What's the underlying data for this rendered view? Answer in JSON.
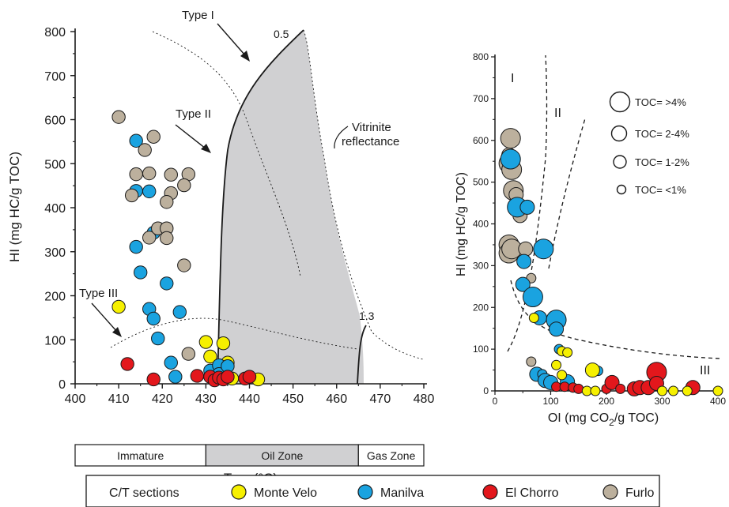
{
  "chart_data": [
    {
      "type": "scatter",
      "xlabel_main": "T",
      "xlabel_sub": "max",
      "xlabel_unit": " (°C)",
      "ylabel": "HI (mg HC/g TOC)",
      "xlim": [
        400,
        480
      ],
      "ylim": [
        0,
        800
      ],
      "x_ticks": [
        "400",
        "410",
        "420",
        "430",
        "440",
        "450",
        "460",
        "470",
        "480"
      ],
      "y_ticks": [
        "0",
        "100",
        "200",
        "300",
        "400",
        "500",
        "600",
        "700",
        "800"
      ],
      "annotations": {
        "type_i": "Type I",
        "type_ii": "Type II",
        "type_iii": "Type III",
        "vr_low": "0.5",
        "vr_high": "1.3",
        "vitrinite_1": "Vitrinite",
        "vitrinite_2": "reflectance"
      },
      "zones": [
        {
          "label": "Immature",
          "from": 400,
          "to": 430
        },
        {
          "label": "Oil Zone",
          "from": 430,
          "to": 465
        },
        {
          "label": "Gas Zone",
          "from": 465,
          "to": 480
        }
      ],
      "series": [
        {
          "name": "Monte Velo",
          "color": "#f6f000",
          "points": [
            [
              410,
              175
            ],
            [
              430,
              95
            ],
            [
              431,
              62
            ],
            [
              432,
              18
            ],
            [
              434,
              92
            ],
            [
              435,
              48
            ],
            [
              436,
              12
            ],
            [
              442,
              10
            ]
          ]
        },
        {
          "name": "Manilva",
          "color": "#1aa3e0",
          "points": [
            [
              414,
              552
            ],
            [
              414,
              438
            ],
            [
              417,
              437
            ],
            [
              414,
              311
            ],
            [
              415,
              253
            ],
            [
              418,
              343
            ],
            [
              421,
              228
            ],
            [
              417,
              170
            ],
            [
              418,
              148
            ],
            [
              419,
              103
            ],
            [
              424,
              163
            ],
            [
              422,
              48
            ],
            [
              423,
              16
            ],
            [
              431,
              30
            ],
            [
              433,
              42
            ],
            [
              433,
              22
            ],
            [
              435,
              40
            ]
          ]
        },
        {
          "name": "El Chorro",
          "color": "#e3171c",
          "points": [
            [
              412,
              45
            ],
            [
              418,
              10
            ],
            [
              428,
              18
            ],
            [
              431,
              16
            ],
            [
              432,
              8
            ],
            [
              433,
              14
            ],
            [
              434,
              10
            ],
            [
              435,
              16
            ],
            [
              439,
              12
            ],
            [
              440,
              16
            ]
          ]
        },
        {
          "name": "Furlo",
          "color": "#bcb09d",
          "points": [
            [
              410,
              606
            ],
            [
              418,
              561
            ],
            [
              416,
              531
            ],
            [
              414,
              476
            ],
            [
              417,
              478
            ],
            [
              422,
              475
            ],
            [
              426,
              476
            ],
            [
              413,
              428
            ],
            [
              422,
              433
            ],
            [
              421,
              413
            ],
            [
              425,
              451
            ],
            [
              417,
              332
            ],
            [
              419,
              353
            ],
            [
              421,
              353
            ],
            [
              421,
              331
            ],
            [
              425,
              269
            ],
            [
              426,
              68
            ]
          ]
        }
      ]
    },
    {
      "type": "scatter",
      "xlabel_main": "OI (mg CO",
      "xlabel_sub": "2",
      "xlabel_unit": "/g TOC)",
      "ylabel": "HI (mg HC/g TOC)",
      "xlim": [
        0,
        400
      ],
      "ylim": [
        0,
        800
      ],
      "x_ticks": [
        "0",
        "100",
        "200",
        "300",
        "400"
      ],
      "y_ticks": [
        "0",
        "100",
        "200",
        "300",
        "400",
        "500",
        "600",
        "700",
        "800"
      ],
      "field_labels": {
        "i": "I",
        "ii": "II",
        "iii": "III"
      },
      "size_legend": [
        "TOC= >4%",
        "TOC= 2-4%",
        "TOC= 1-2%",
        "TOC= <1%"
      ],
      "series": [
        {
          "name": "Furlo",
          "color": "#bcb09d",
          "points": [
            [
              25,
              565,
              "m"
            ],
            [
              25,
              545,
              "l"
            ],
            [
              28,
              605,
              "l"
            ],
            [
              30,
              530,
              "l"
            ],
            [
              33,
              480,
              "l"
            ],
            [
              38,
              470,
              "m"
            ],
            [
              45,
              420,
              "m"
            ],
            [
              25,
              350,
              "l"
            ],
            [
              25,
              330,
              "l"
            ],
            [
              30,
              340,
              "l"
            ],
            [
              55,
              340,
              "m"
            ],
            [
              65,
              270,
              "s"
            ],
            [
              65,
              70,
              "s"
            ]
          ]
        },
        {
          "name": "Manilva",
          "color": "#1aa3e0",
          "points": [
            [
              28,
              555,
              "l"
            ],
            [
              40,
              440,
              "l"
            ],
            [
              58,
              440,
              "m"
            ],
            [
              52,
              310,
              "m"
            ],
            [
              50,
              255,
              "m"
            ],
            [
              68,
              225,
              "l"
            ],
            [
              87,
              340,
              "l"
            ],
            [
              80,
              175,
              "m"
            ],
            [
              110,
              170,
              "l"
            ],
            [
              110,
              148,
              "m"
            ],
            [
              115,
              100,
              "s"
            ],
            [
              75,
              40,
              "m"
            ],
            [
              85,
              40,
              "s"
            ],
            [
              90,
              25,
              "m"
            ],
            [
              100,
              20,
              "m"
            ],
            [
              130,
              22,
              "m"
            ],
            [
              185,
              48,
              "s"
            ]
          ]
        },
        {
          "name": "El Chorro",
          "color": "#e3171c",
          "points": [
            [
              110,
              10,
              "s"
            ],
            [
              125,
              10,
              "s"
            ],
            [
              140,
              8,
              "s"
            ],
            [
              150,
              5,
              "s"
            ],
            [
              200,
              5,
              "s"
            ],
            [
              210,
              20,
              "m"
            ],
            [
              225,
              5,
              "s"
            ],
            [
              250,
              5,
              "m"
            ],
            [
              260,
              8,
              "m"
            ],
            [
              275,
              8,
              "m"
            ],
            [
              290,
              45,
              "l"
            ],
            [
              290,
              18,
              "m"
            ],
            [
              355,
              8,
              "m"
            ]
          ]
        },
        {
          "name": "Monte Velo",
          "color": "#f6f000",
          "points": [
            [
              70,
              175,
              "s"
            ],
            [
              175,
              50,
              "m"
            ],
            [
              120,
              95,
              "s"
            ],
            [
              130,
              92,
              "s"
            ],
            [
              110,
              62,
              "s"
            ],
            [
              120,
              38,
              "s"
            ],
            [
              165,
              0,
              "s"
            ],
            [
              180,
              0,
              "s"
            ],
            [
              300,
              0,
              "s"
            ],
            [
              320,
              0,
              "s"
            ],
            [
              345,
              0,
              "s"
            ],
            [
              400,
              0,
              "s"
            ]
          ]
        }
      ]
    }
  ],
  "legend": {
    "title": "C/T sections",
    "items": [
      "Monte Velo",
      "Manilva",
      "El Chorro",
      "Furlo"
    ]
  }
}
